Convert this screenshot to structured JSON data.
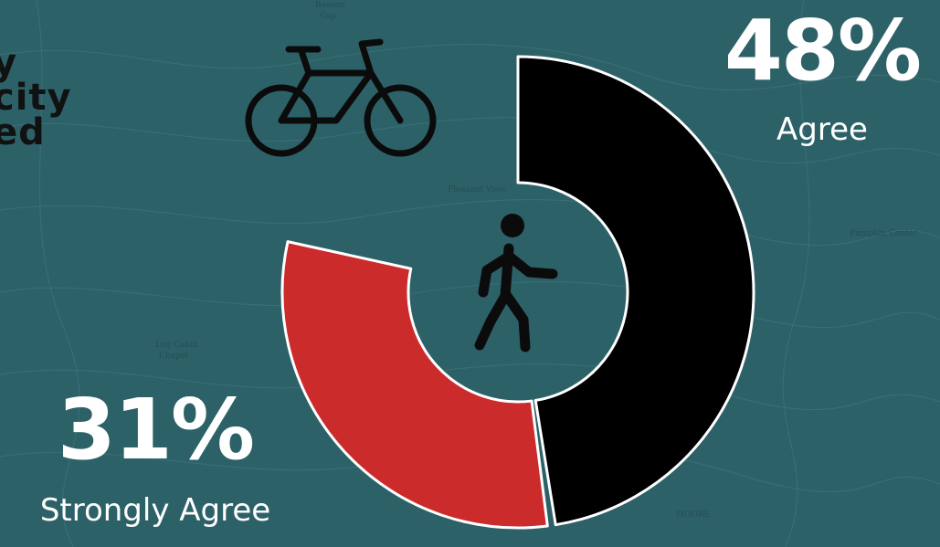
{
  "heading_fragment": [
    "y",
    "city",
    "ed"
  ],
  "icons": {
    "bicycle": "bicycle-icon",
    "pedestrian": "pedestrian-icon"
  },
  "colors": {
    "background": "#2d6168",
    "agree": "#000000",
    "strongly_agree": "#cc2b2b",
    "outline": "#ffffff"
  },
  "chart_data": {
    "type": "pie",
    "donut": true,
    "title": "",
    "slices": [
      {
        "label": "Agree",
        "value": 48,
        "display": "48%",
        "color": "#000000"
      },
      {
        "label": "Strongly Agree",
        "value": 31,
        "display": "31%",
        "color": "#cc2b2b"
      }
    ],
    "total": 100,
    "start": "12 o'clock, clockwise",
    "legend": "none (labels beside chart)"
  }
}
